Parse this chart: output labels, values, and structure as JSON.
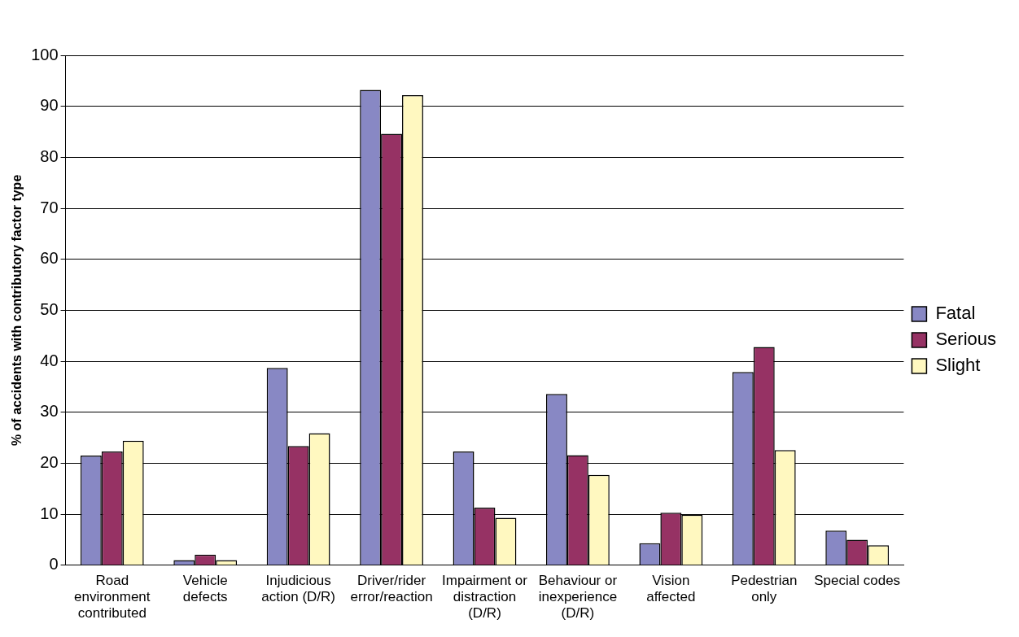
{
  "chart_data": {
    "type": "bar",
    "ylabel": "% of accidents with contributory factor type",
    "categories": [
      "Road environment contributed",
      "Vehicle defects",
      "Injudicious action (D/R)",
      "Driver/rider error/reaction",
      "Impairment or distraction (D/R)",
      "Behaviour or inexperience (D/R)",
      "Vision affected",
      "Pedestrian only",
      "Special codes"
    ],
    "series": [
      {
        "name": "Fatal",
        "color": "#8888c4",
        "values": [
          21.5,
          1.0,
          38.7,
          93.2,
          22.3,
          33.6,
          4.3,
          37.9,
          6.8
        ]
      },
      {
        "name": "Serious",
        "color": "#963264",
        "values": [
          22.3,
          2.1,
          23.4,
          84.6,
          11.3,
          21.6,
          10.3,
          42.8,
          5.0
        ]
      },
      {
        "name": "Slight",
        "color": "#fff8c0",
        "values": [
          24.4,
          1.0,
          25.9,
          92.2,
          9.3,
          17.7,
          9.9,
          22.6,
          3.9
        ]
      }
    ],
    "ylim": [
      0,
      100
    ],
    "yticks": [
      0,
      10,
      20,
      30,
      40,
      50,
      60,
      70,
      80,
      90,
      100
    ],
    "grid": "y",
    "legend": "right"
  }
}
